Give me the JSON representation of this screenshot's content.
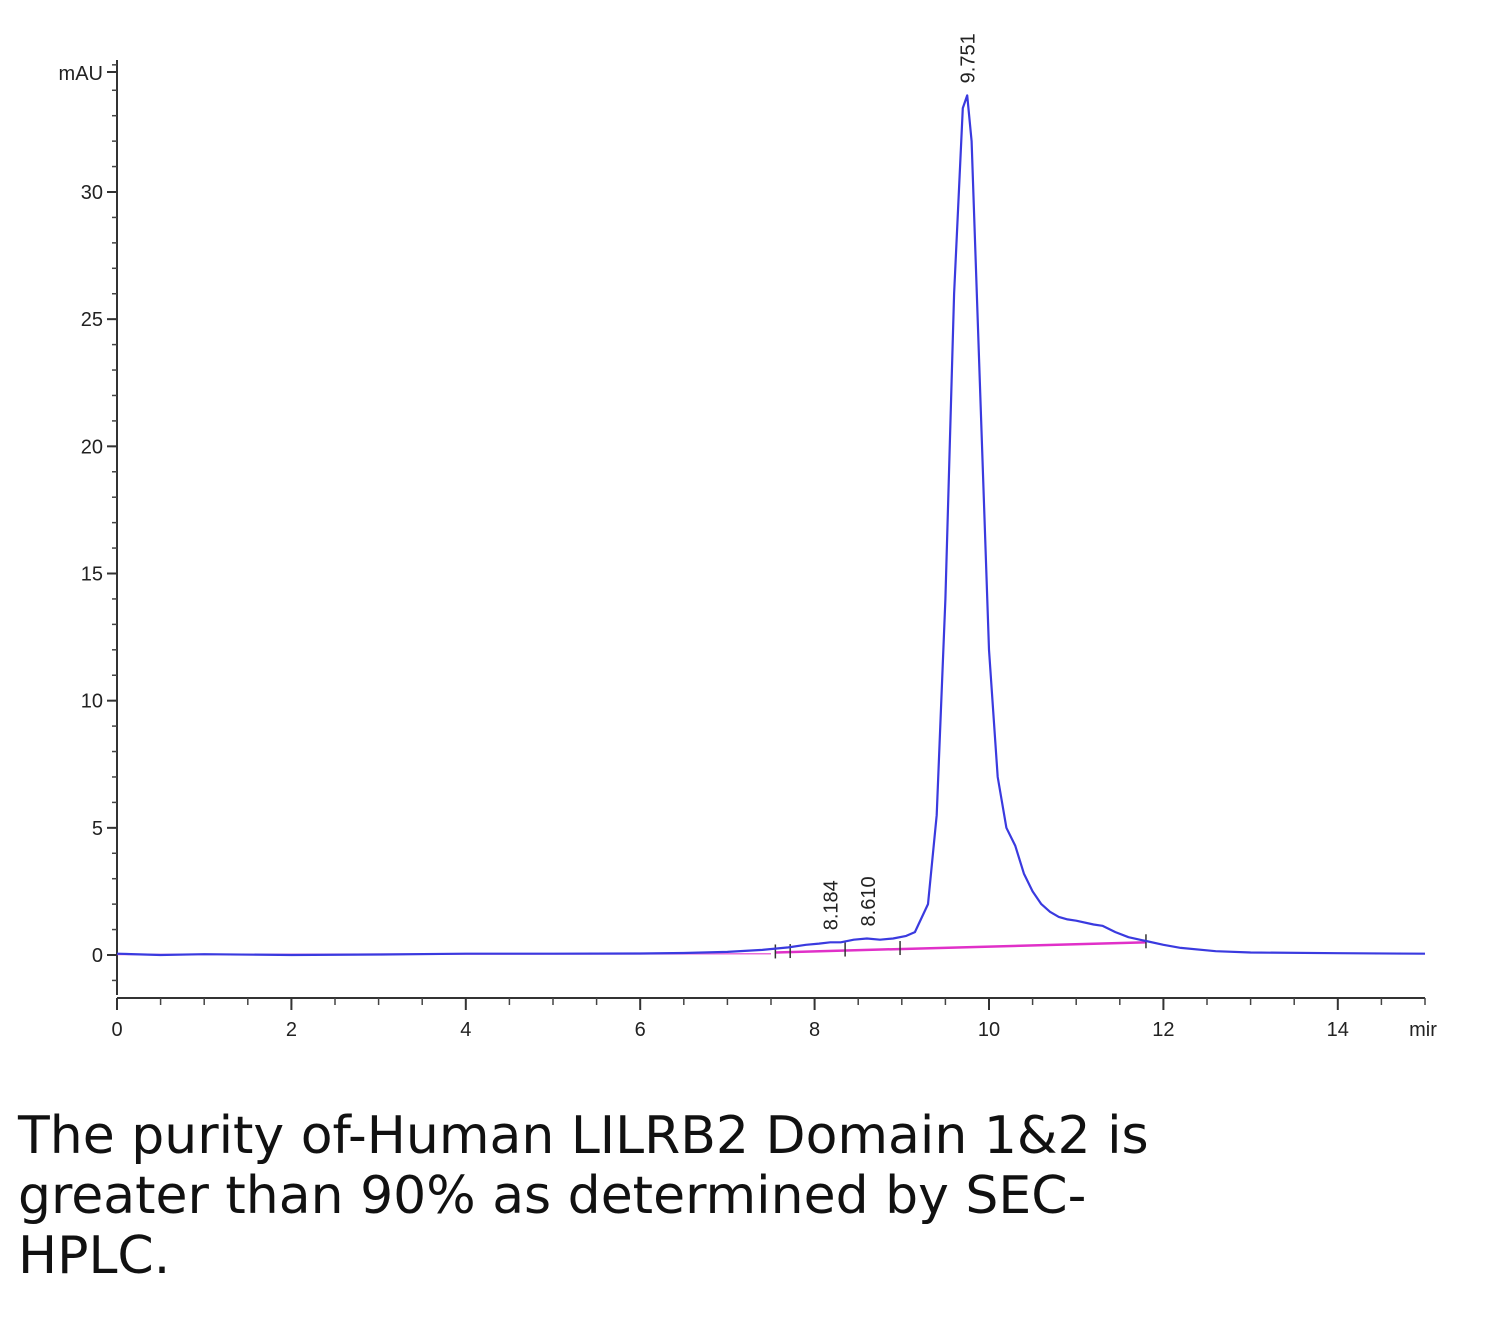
{
  "chart_data": {
    "type": "line",
    "title": "",
    "xlabel": "",
    "ylabel": "mAU",
    "x_unit_label": "mir",
    "xlim": [
      0,
      15
    ],
    "ylim": [
      -2,
      35.5
    ],
    "x_ticks": [
      0,
      2,
      4,
      6,
      8,
      10,
      12,
      14
    ],
    "y_ticks": [
      0,
      5,
      10,
      15,
      20,
      25,
      30
    ],
    "grid": false,
    "legend": "none",
    "series": [
      {
        "color": "#3a3adf",
        "x": [
          0,
          0.5,
          1,
          2,
          3,
          4,
          5,
          6,
          6.5,
          7,
          7.4,
          7.7,
          7.9,
          8.05,
          8.18,
          8.3,
          8.45,
          8.6,
          8.75,
          8.9,
          9.05,
          9.15,
          9.3,
          9.4,
          9.5,
          9.6,
          9.7,
          9.75,
          9.8,
          9.9,
          10.0,
          10.1,
          10.2,
          10.3,
          10.4,
          10.5,
          10.6,
          10.7,
          10.8,
          10.9,
          11.0,
          11.2,
          11.3,
          11.45,
          11.6,
          11.8,
          12.0,
          12.2,
          12.6,
          13.0,
          14.0,
          15.0
        ],
        "y": [
          0.05,
          0.0,
          0.03,
          0.0,
          0.02,
          0.05,
          0.05,
          0.06,
          0.08,
          0.12,
          0.2,
          0.3,
          0.4,
          0.45,
          0.5,
          0.5,
          0.6,
          0.65,
          0.6,
          0.65,
          0.75,
          0.9,
          2.0,
          5.5,
          14.0,
          26.0,
          33.3,
          33.8,
          32.0,
          22.0,
          12.0,
          7.0,
          5.0,
          4.3,
          3.2,
          2.5,
          2.0,
          1.7,
          1.5,
          1.4,
          1.35,
          1.2,
          1.15,
          0.9,
          0.7,
          0.55,
          0.4,
          0.28,
          0.15,
          0.1,
          0.07,
          0.05
        ]
      }
    ],
    "baseline": {
      "color": "#e030c8",
      "x": [
        7.55,
        11.8
      ],
      "y": [
        0.1,
        0.5
      ]
    },
    "peak_labels": [
      "8.184",
      "8.610",
      "9.751"
    ],
    "peak_positions": [
      {
        "x": 8.184,
        "y": 0.5
      },
      {
        "x": 8.61,
        "y": 0.65
      },
      {
        "x": 9.751,
        "y": 33.8
      }
    ],
    "integration_marks_x": [
      7.55,
      7.72,
      8.35,
      8.98,
      11.8
    ]
  },
  "caption": "The purity of-Human LILRB2 Domain 1&2 is greater than 90% as determined by SEC-HPLC."
}
